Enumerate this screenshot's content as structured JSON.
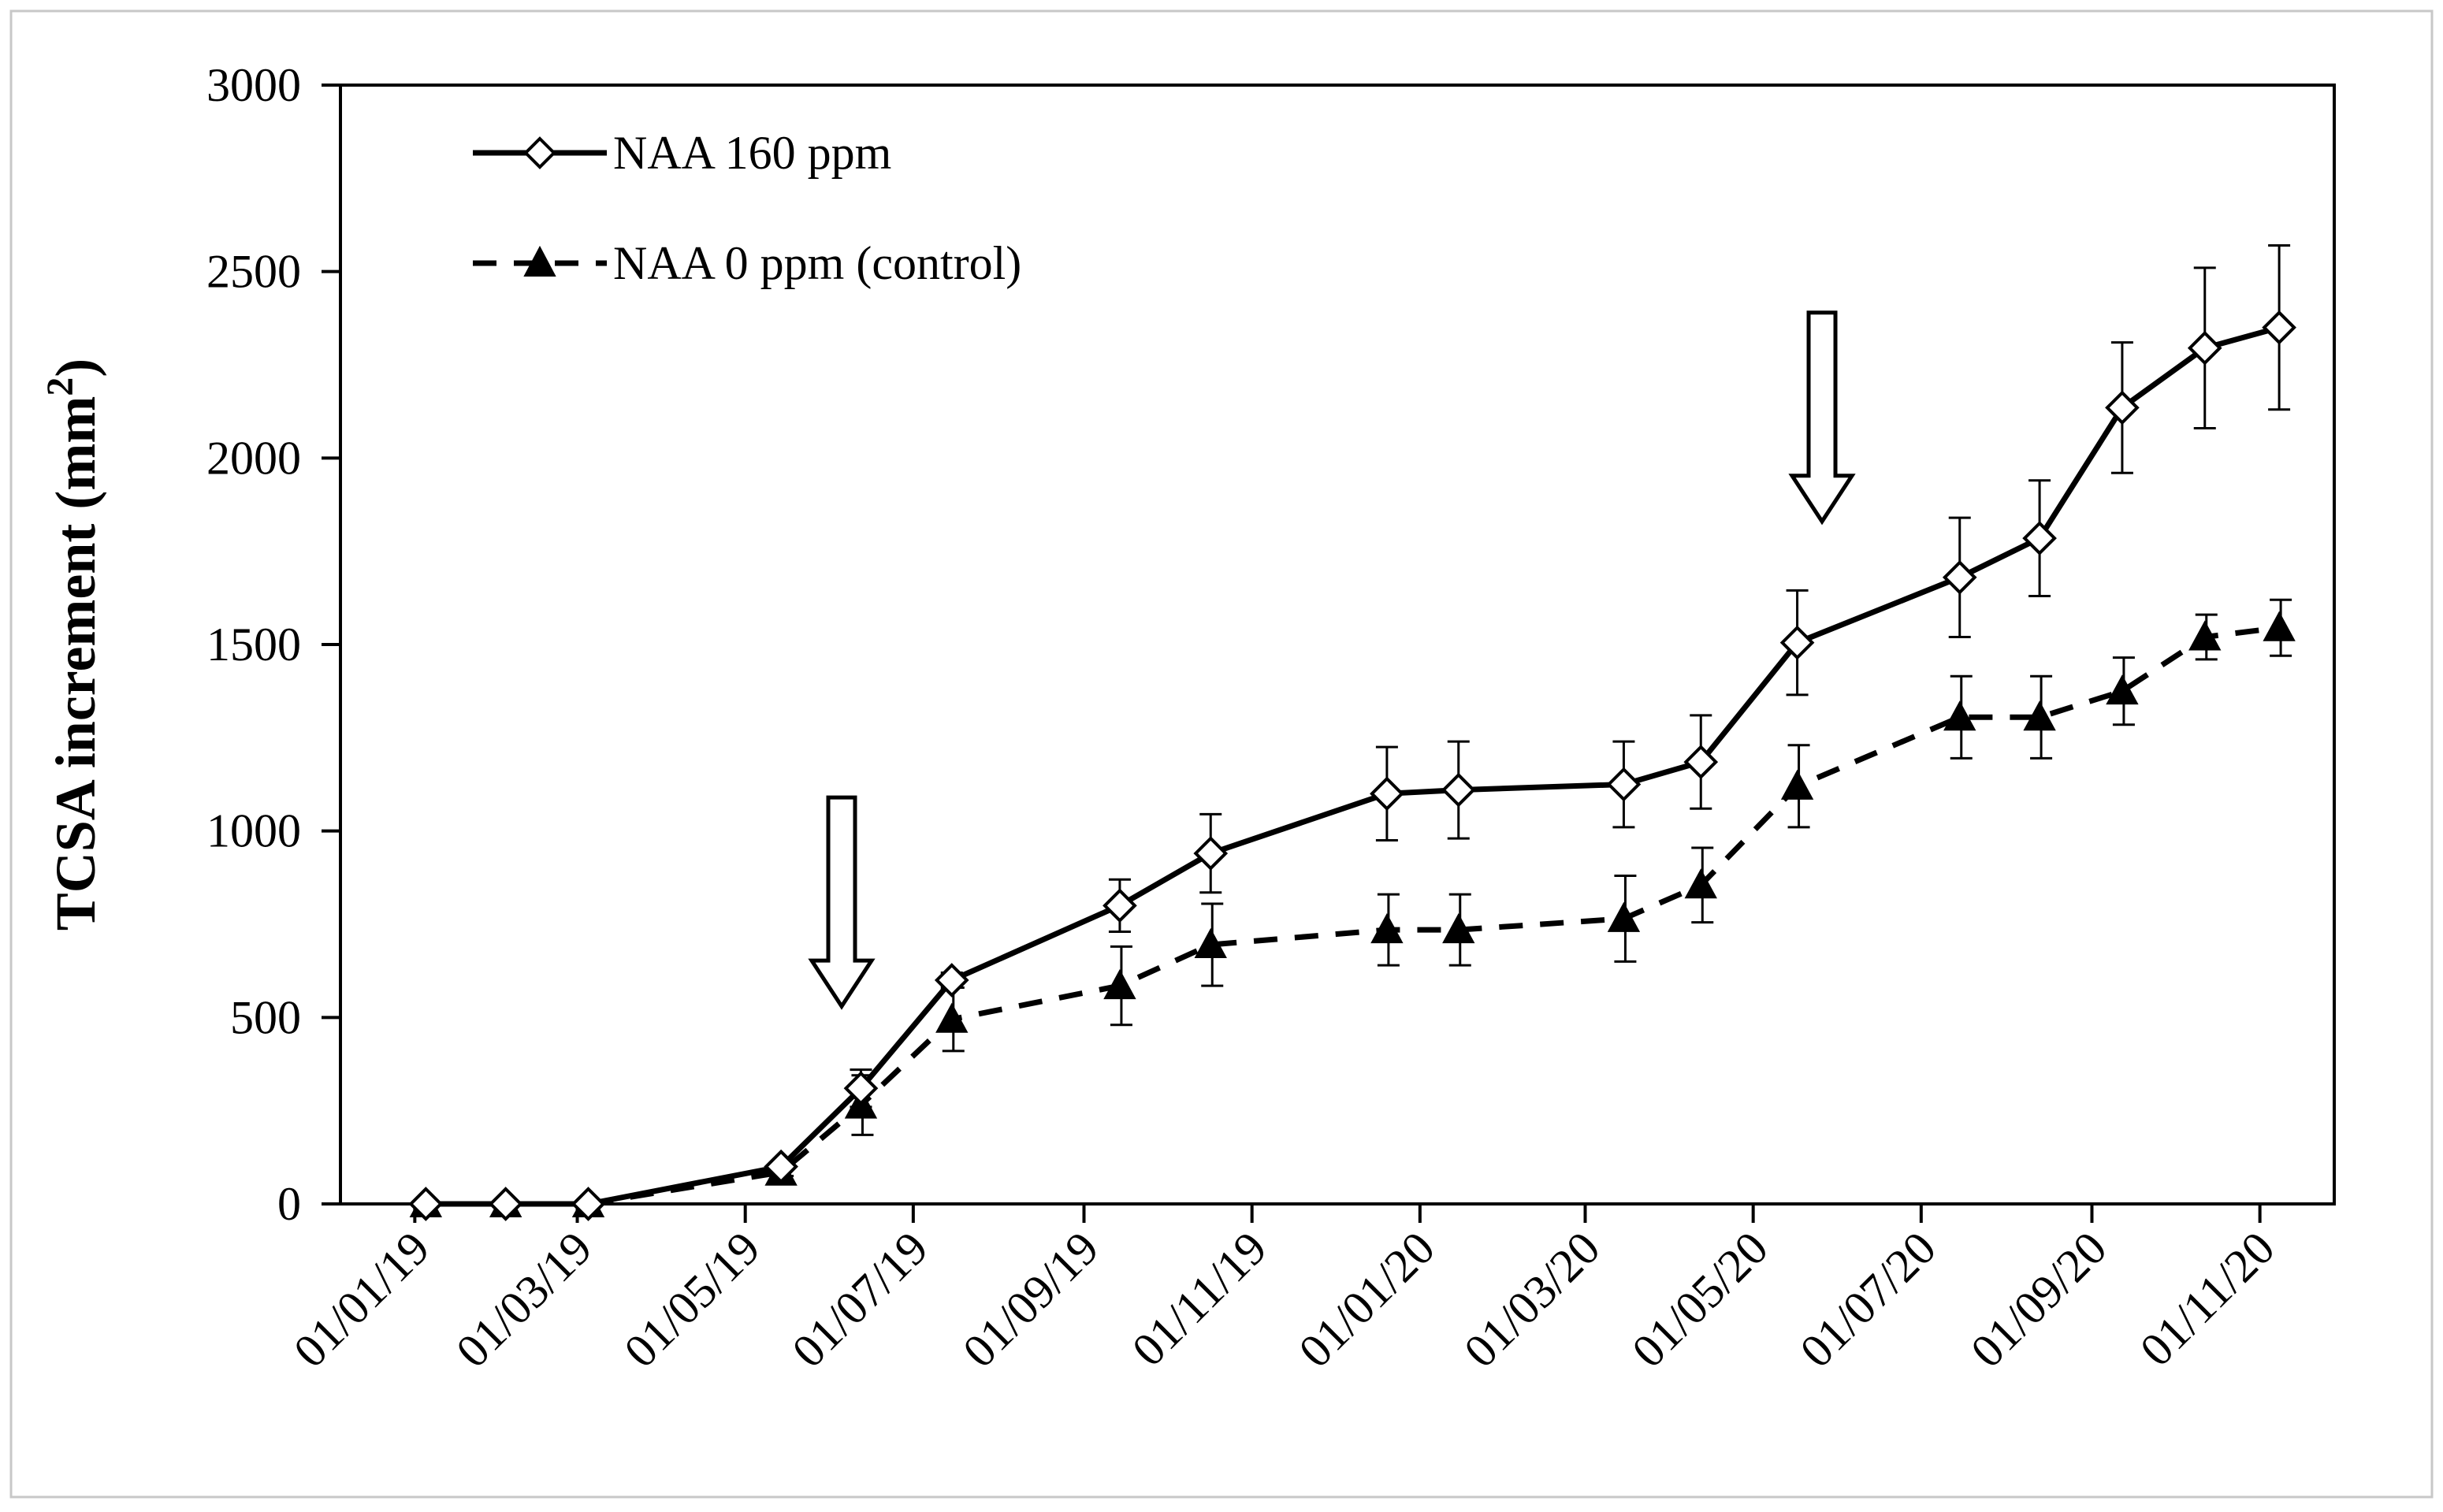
{
  "chart_data": {
    "type": "line",
    "title": "",
    "xlabel": "",
    "ylabel": "TCSA increment (mm",
    "ylabel_superscript": "2",
    "ylabel_close": ")",
    "ylim": [
      0,
      3000
    ],
    "yticks": [
      0,
      500,
      1000,
      1500,
      2000,
      2500,
      3000
    ],
    "ytick_labels": [
      "0",
      "500",
      "1000",
      "1500",
      "2000",
      "2500",
      "3000"
    ],
    "x_domain": [
      "2018-12-05",
      "2020-11-28"
    ],
    "xticks": [
      "2019-01-01",
      "2019-03-01",
      "2019-05-01",
      "2019-07-01",
      "2019-09-01",
      "2019-11-01",
      "2020-01-01",
      "2020-03-01",
      "2020-05-01",
      "2020-07-01",
      "2020-09-01",
      "2020-11-01"
    ],
    "xtick_labels": [
      "01/01/19",
      "01/03/19",
      "01/05/19",
      "01/07/19",
      "01/09/19",
      "01/11/19",
      "01/01/20",
      "01/03/20",
      "01/05/20",
      "01/07/20",
      "01/09/20",
      "01/11/20"
    ],
    "legend_position": "top-left",
    "series": [
      {
        "name": "NAA 160 ppm",
        "marker": "open-diamond",
        "line_style": "solid",
        "color": "#000000",
        "x": [
          "2019-01-05",
          "2019-02-03",
          "2019-03-05",
          "2019-05-14",
          "2019-06-12",
          "2019-07-15",
          "2019-09-14",
          "2019-10-17",
          "2019-12-20",
          "2020-01-15",
          "2020-03-15",
          "2020-04-12",
          "2020-05-17",
          "2020-07-15",
          "2020-08-13",
          "2020-09-12",
          "2020-10-12",
          "2020-11-08"
        ],
        "values": [
          0,
          0,
          0,
          100,
          310,
          600,
          800,
          940,
          1100,
          1110,
          1125,
          1185,
          1505,
          1680,
          1785,
          2135,
          2295,
          2350
        ],
        "error": [
          0,
          0,
          0,
          10,
          50,
          20,
          70,
          105,
          125,
          130,
          115,
          125,
          140,
          160,
          155,
          175,
          215,
          220
        ]
      },
      {
        "name": "NAA 0 ppm (control)",
        "marker": "filled-triangle",
        "line_style": "dashed",
        "color": "#000000",
        "x": [
          "2019-01-05",
          "2019-02-03",
          "2019-03-05",
          "2019-05-14",
          "2019-06-12",
          "2019-07-15",
          "2019-09-14",
          "2019-10-17",
          "2019-12-20",
          "2020-01-15",
          "2020-03-15",
          "2020-04-12",
          "2020-05-17",
          "2020-07-15",
          "2020-08-13",
          "2020-09-12",
          "2020-10-12",
          "2020-11-08"
        ],
        "values": [
          0,
          0,
          0,
          85,
          265,
          495,
          585,
          695,
          735,
          735,
          765,
          855,
          1120,
          1305,
          1305,
          1375,
          1520,
          1545
        ],
        "error": [
          0,
          0,
          0,
          10,
          80,
          85,
          105,
          110,
          95,
          95,
          115,
          100,
          110,
          110,
          110,
          90,
          60,
          75
        ]
      }
    ],
    "annotations": [
      {
        "type": "down-arrow",
        "x": "2019-06-05",
        "y_from": 1090,
        "y_to": 530
      },
      {
        "type": "down-arrow",
        "x": "2020-05-26",
        "y_from": 2390,
        "y_to": 1830
      }
    ]
  }
}
